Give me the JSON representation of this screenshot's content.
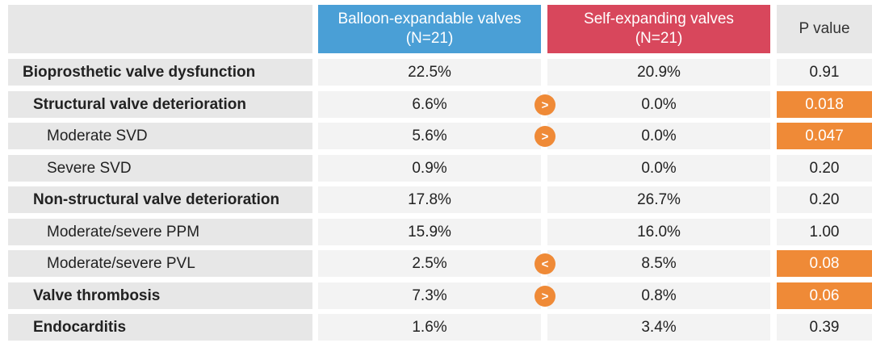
{
  "chart_data": {
    "type": "table",
    "columns": [
      {
        "name": "Balloon-expandable valves",
        "n": "(N=21)",
        "color": "#4a9fd6"
      },
      {
        "name": "Self-expanding valves",
        "n": "(N=21)",
        "color": "#d8475c"
      },
      {
        "name": "P value"
      }
    ],
    "rows": [
      {
        "label": "Bioprosthetic valve dysfunction",
        "bold": true,
        "level": 0,
        "balloon": "22.5%",
        "self": "20.9%",
        "comparison": "",
        "p": "0.91",
        "significant": false
      },
      {
        "label": "Structural valve deterioration",
        "bold": true,
        "level": 1,
        "balloon": "6.6%",
        "self": "0.0%",
        "comparison": ">",
        "p": "0.018",
        "significant": true
      },
      {
        "label": "Moderate SVD",
        "bold": false,
        "level": 2,
        "balloon": "5.6%",
        "self": "0.0%",
        "comparison": ">",
        "p": "0.047",
        "significant": true
      },
      {
        "label": "Severe SVD",
        "bold": false,
        "level": 2,
        "balloon": "0.9%",
        "self": "0.0%",
        "comparison": "",
        "p": "0.20",
        "significant": false
      },
      {
        "label": "Non-structural valve deterioration",
        "bold": true,
        "level": 1,
        "balloon": "17.8%",
        "self": "26.7%",
        "comparison": "",
        "p": "0.20",
        "significant": false
      },
      {
        "label": "Moderate/severe PPM",
        "bold": false,
        "level": 2,
        "balloon": "15.9%",
        "self": "16.0%",
        "comparison": "",
        "p": "1.00",
        "significant": false
      },
      {
        "label": "Moderate/severe PVL",
        "bold": false,
        "level": 2,
        "balloon": "2.5%",
        "self": "8.5%",
        "comparison": "<",
        "p": "0.08",
        "significant": true
      },
      {
        "label": "Valve thrombosis",
        "bold": true,
        "level": 1,
        "balloon": "7.3%",
        "self": "0.8%",
        "comparison": ">",
        "p": "0.06",
        "significant": true
      },
      {
        "label": "Endocarditis",
        "bold": true,
        "level": 1,
        "balloon": "1.6%",
        "self": "3.4%",
        "comparison": "",
        "p": "0.39",
        "significant": false
      }
    ]
  }
}
